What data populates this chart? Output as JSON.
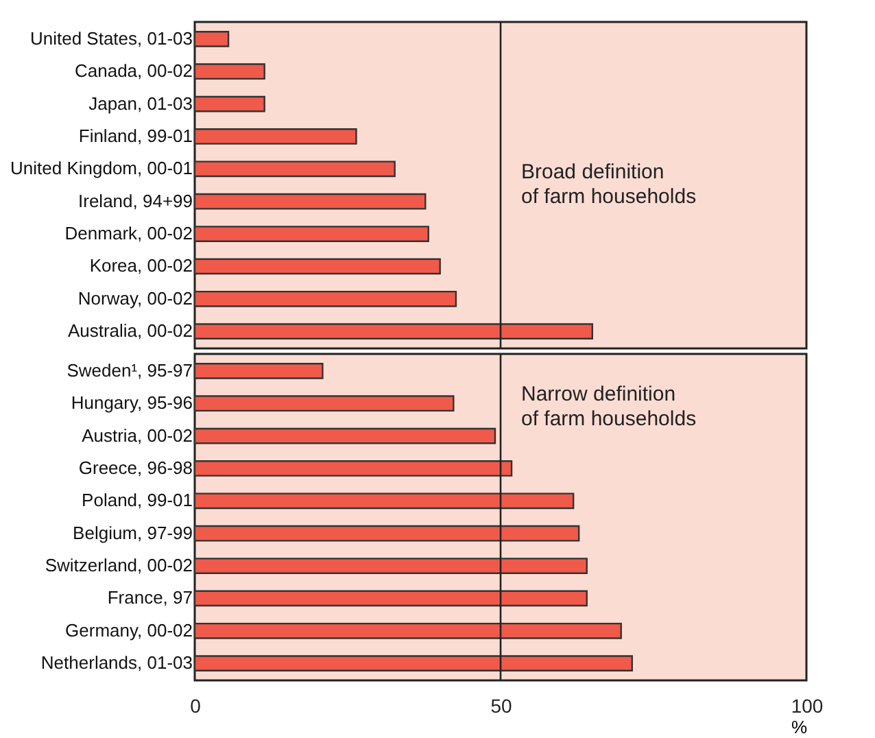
{
  "chart_data": [
    {
      "type": "bar",
      "orientation": "horizontal",
      "categories": [
        "United States, 01-03",
        "Canada, 00-02",
        "Japan, 01-03",
        "Finland, 99-01",
        "United Kingdom, 00-01",
        "Ireland, 94+99",
        "Denmark, 00-02",
        "Korea, 00-02",
        "Norway, 00-02",
        "Australia, 00-02"
      ],
      "values": [
        5.5,
        11.4,
        11.4,
        26.4,
        32.7,
        37.7,
        38.2,
        40.1,
        42.7,
        65.0
      ],
      "color": "#f05a4a",
      "xlim": [
        0,
        100
      ],
      "xticks": [
        0,
        50,
        100
      ],
      "tick_labels": "y",
      "grid": false,
      "ref_lines": [
        {
          "axis": "x",
          "value": 50,
          "color": "#222222"
        }
      ],
      "annotations": [
        "Broad definition\nof farm households"
      ]
    },
    {
      "type": "bar",
      "orientation": "horizontal",
      "categories": [
        "Sweden¹, 95-97",
        "Hungary, 95-96",
        "Austria, 00-02",
        "Greece, 96-98",
        "Poland, 99-01",
        "Belgium, 97-99",
        "Switzerland, 00-02",
        "France, 97",
        "Germany, 00-02",
        "Netherlands, 01-03"
      ],
      "values": [
        20.9,
        42.3,
        49.1,
        51.8,
        61.9,
        62.8,
        64.1,
        64.1,
        69.7,
        71.5
      ],
      "color": "#f05a4a",
      "xlim": [
        0,
        100
      ],
      "xticks": [
        0,
        50,
        100
      ],
      "xlabel": "%",
      "grid": false,
      "ref_lines": [
        {
          "axis": "x",
          "value": 50,
          "color": "#222222"
        }
      ],
      "annotations": [
        "Narrow definition\nof farm households"
      ]
    }
  ]
}
